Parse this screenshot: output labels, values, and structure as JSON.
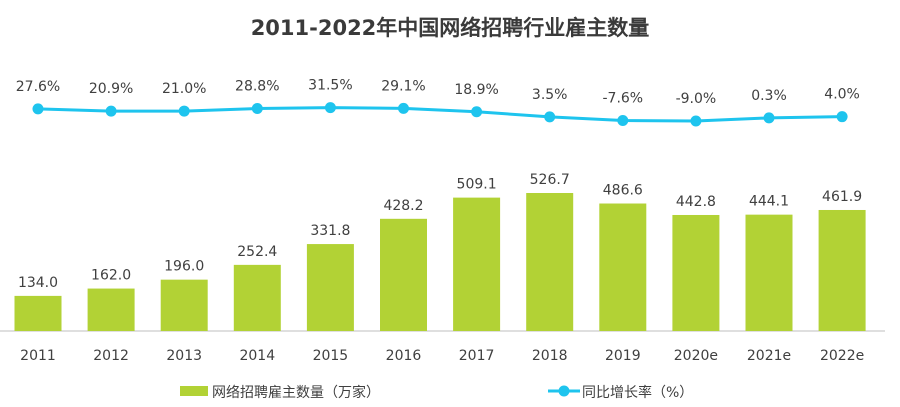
{
  "chart_data": {
    "type": "bar",
    "title": "2011-2022年中国网络招聘行业雇主数量",
    "categories": [
      "2011",
      "2012",
      "2013",
      "2014",
      "2015",
      "2016",
      "2017",
      "2018",
      "2019",
      "2020e",
      "2021e",
      "2022e"
    ],
    "series": [
      {
        "name": "网络招聘雇主数量（万家）",
        "type": "bar",
        "color": "#b2d235",
        "values": [
          134.0,
          162.0,
          196.0,
          252.4,
          331.8,
          428.2,
          509.1,
          526.7,
          486.6,
          442.8,
          444.1,
          461.9
        ],
        "labels": [
          "134.0",
          "162.0",
          "196.0",
          "252.4",
          "331.8",
          "428.2",
          "509.1",
          "526.7",
          "486.6",
          "442.8",
          "444.1",
          "461.9"
        ]
      },
      {
        "name": "同比增长率（%）",
        "type": "line",
        "color": "#1ec4ee",
        "values": [
          27.6,
          20.9,
          21.0,
          28.8,
          31.5,
          29.1,
          18.9,
          3.5,
          -7.6,
          -9.0,
          0.3,
          4.0
        ],
        "labels": [
          "27.6%",
          "20.9%",
          "21.0%",
          "28.8%",
          "31.5%",
          "29.1%",
          "18.9%",
          "3.5%",
          "-7.6%",
          "-9.0%",
          "0.3%",
          "4.0%"
        ]
      }
    ],
    "legend_position": "bottom",
    "grid": false
  }
}
